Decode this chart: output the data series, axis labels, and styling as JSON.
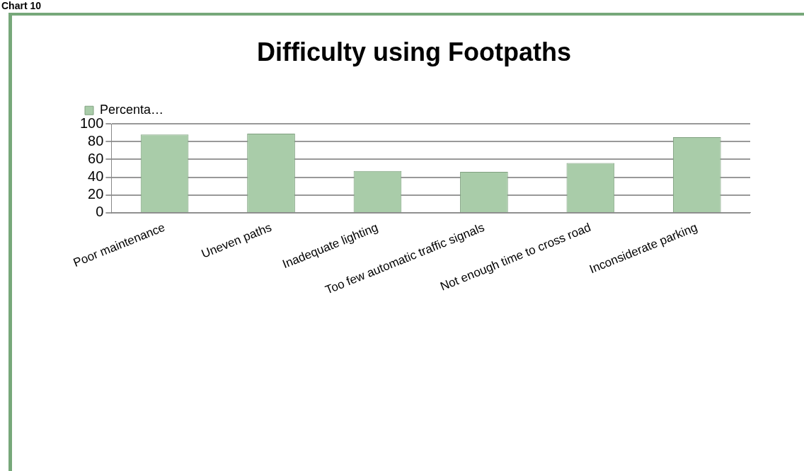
{
  "chart_data": {
    "type": "bar",
    "title": "Difficulty using Footpaths",
    "annotations": [
      "Chart 10"
    ],
    "categories": [
      "Poor maintenance",
      "Uneven paths",
      "Inadequate lighting",
      "Too few automatic traffic signals",
      "Not enough time to cross road",
      "Inconsiderate parking"
    ],
    "series": [
      {
        "name": "Percenta…",
        "color": "#a9cca9",
        "values": [
          88,
          89,
          47,
          46,
          56,
          85
        ]
      }
    ],
    "ylim": [
      0,
      100
    ],
    "yticks": [
      0,
      20,
      40,
      60,
      80,
      100
    ],
    "grid": "y",
    "legend": "top left"
  }
}
